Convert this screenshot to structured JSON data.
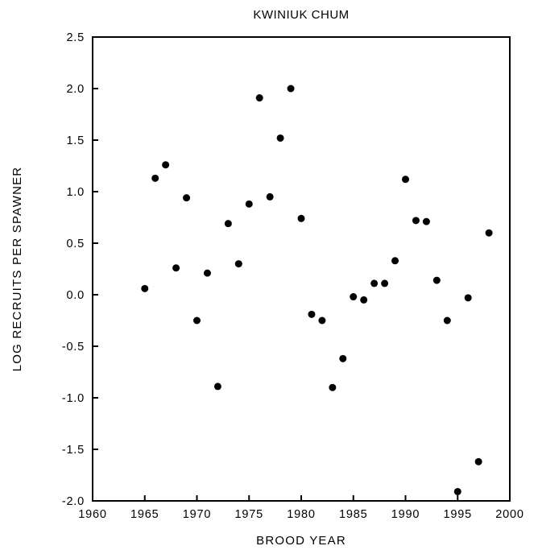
{
  "chart_data": {
    "type": "scatter",
    "title": "KWINIUK CHUM",
    "xlabel": "BROOD YEAR",
    "ylabel": "LOG RECRUITS PER SPAWNER",
    "xlim": [
      1960,
      2000
    ],
    "ylim": [
      -2.0,
      2.5
    ],
    "x_ticks": [
      "1960",
      "1965",
      "1970",
      "1975",
      "1980",
      "1985",
      "1990",
      "1995",
      "2000"
    ],
    "y_ticks": [
      "-2.0",
      "-1.5",
      "-1.0",
      "-0.5",
      "0.0",
      "0.5",
      "1.0",
      "1.5",
      "2.0",
      "2.5"
    ],
    "grid": false,
    "legend": "none",
    "marker_color": "#000000",
    "points": [
      {
        "x": 1965,
        "y": 0.06
      },
      {
        "x": 1966,
        "y": 1.13
      },
      {
        "x": 1967,
        "y": 1.26
      },
      {
        "x": 1968,
        "y": 0.26
      },
      {
        "x": 1969,
        "y": 0.94
      },
      {
        "x": 1970,
        "y": -0.25
      },
      {
        "x": 1971,
        "y": 0.21
      },
      {
        "x": 1972,
        "y": -0.89
      },
      {
        "x": 1973,
        "y": 0.69
      },
      {
        "x": 1974,
        "y": 0.3
      },
      {
        "x": 1975,
        "y": 0.88
      },
      {
        "x": 1976,
        "y": 1.91
      },
      {
        "x": 1977,
        "y": 0.95
      },
      {
        "x": 1978,
        "y": 1.52
      },
      {
        "x": 1979,
        "y": 2.0
      },
      {
        "x": 1980,
        "y": 0.74
      },
      {
        "x": 1981,
        "y": -0.19
      },
      {
        "x": 1982,
        "y": -0.25
      },
      {
        "x": 1983,
        "y": -0.9
      },
      {
        "x": 1984,
        "y": -0.62
      },
      {
        "x": 1985,
        "y": -0.02
      },
      {
        "x": 1986,
        "y": -0.05
      },
      {
        "x": 1987,
        "y": 0.11
      },
      {
        "x": 1988,
        "y": 0.11
      },
      {
        "x": 1989,
        "y": 0.33
      },
      {
        "x": 1990,
        "y": 1.12
      },
      {
        "x": 1991,
        "y": 0.72
      },
      {
        "x": 1992,
        "y": 0.71
      },
      {
        "x": 1993,
        "y": 0.14
      },
      {
        "x": 1994,
        "y": -0.25
      },
      {
        "x": 1995,
        "y": -1.91
      },
      {
        "x": 1996,
        "y": -0.03
      },
      {
        "x": 1997,
        "y": -1.62
      },
      {
        "x": 1998,
        "y": 0.6
      }
    ]
  }
}
